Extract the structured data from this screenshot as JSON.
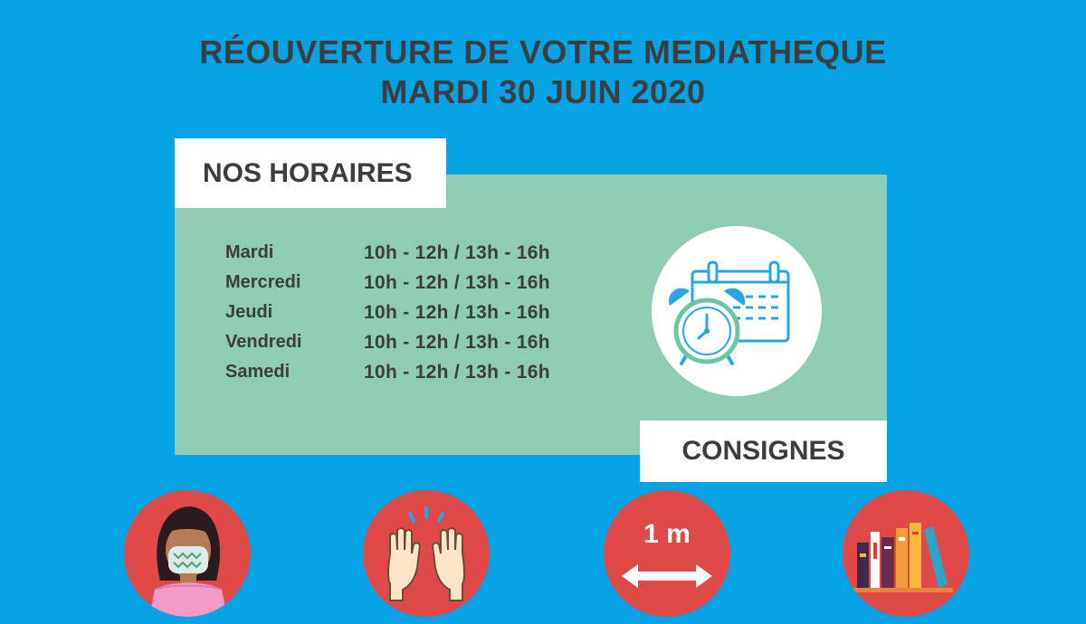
{
  "header": {
    "line1": "RÉOUVERTURE DE VOTRE MEDIATHEQUE",
    "line2": "MARDI 30 JUIN 2020"
  },
  "hours_section": {
    "label": "NOS HORAIRES",
    "rows": [
      {
        "day": "Mardi",
        "time": "10h - 12h / 13h - 16h"
      },
      {
        "day": "Mercredi",
        "time": "10h - 12h / 13h - 16h"
      },
      {
        "day": "Jeudi",
        "time": "10h - 12h / 13h - 16h"
      },
      {
        "day": "Vendredi",
        "time": "10h - 12h / 13h - 16h"
      },
      {
        "day": "Samedi",
        "time": "10h - 12h / 13h - 16h"
      }
    ]
  },
  "rules_section": {
    "label": "CONSIGNES",
    "distance_text": "1 m"
  },
  "icons": [
    "calendar-clock-icon",
    "masked-woman-icon",
    "washed-hands-icon",
    "distance-icon",
    "books-icon"
  ],
  "colors": {
    "background": "#06a3e4",
    "band": "#8ecdb2",
    "circle_red": "#df4a48",
    "text_dark": "#3d3d3d"
  }
}
